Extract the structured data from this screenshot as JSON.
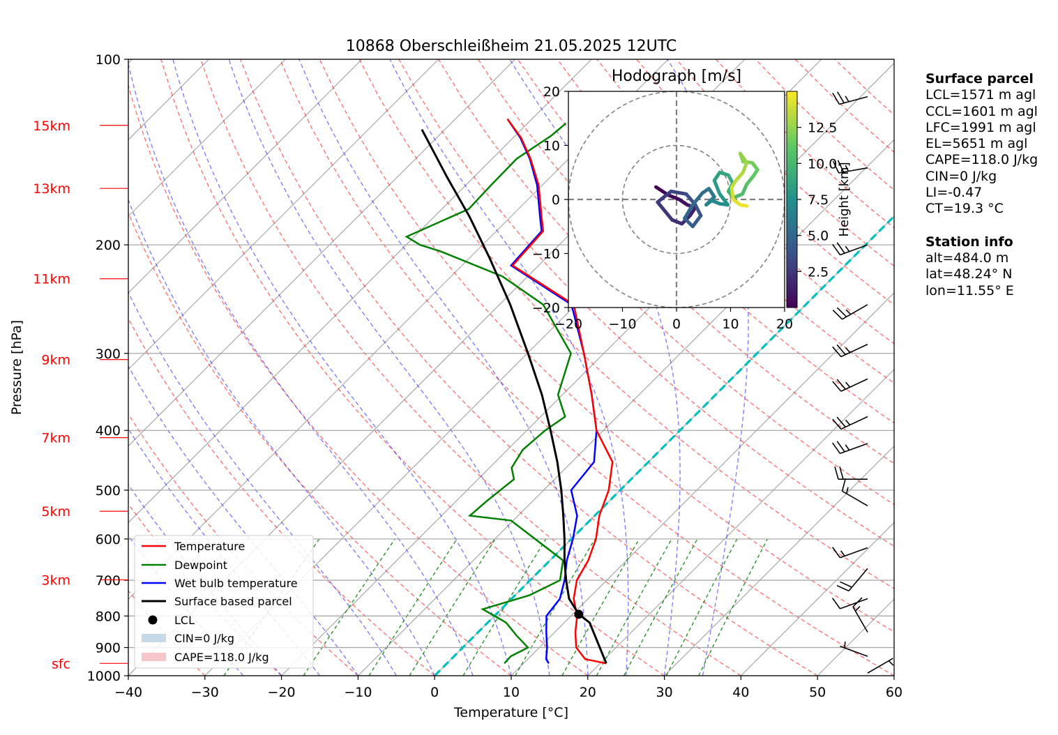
{
  "chart_data": {
    "type": "skewt",
    "title": "10868 Oberschleißheim 21.05.2025 12UTC",
    "xlabel": "Temperature [°C]",
    "ylabel": "Pressure [hPa]",
    "xlim": [
      -40,
      60
    ],
    "ylim": [
      1000,
      100
    ],
    "x_ticks": [
      -40,
      -30,
      -20,
      -10,
      0,
      10,
      20,
      30,
      40,
      50,
      60
    ],
    "y_ticks": [
      100,
      200,
      300,
      400,
      500,
      600,
      700,
      800,
      900,
      1000
    ],
    "height_labels": [
      {
        "label": "15km",
        "p": 128
      },
      {
        "label": "13km",
        "p": 162
      },
      {
        "label": "11km",
        "p": 227
      },
      {
        "label": "9km",
        "p": 307
      },
      {
        "label": "7km",
        "p": 411
      },
      {
        "label": "5km",
        "p": 541
      },
      {
        "label": "3km",
        "p": 699
      },
      {
        "label": "sfc",
        "p": 955
      }
    ],
    "series": [
      {
        "name": "Temperature",
        "color": "#ff0000",
        "points": [
          [
            20.8,
            955
          ],
          [
            17.5,
            940
          ],
          [
            14.8,
            900
          ],
          [
            12.7,
            850
          ],
          [
            10.8,
            800
          ],
          [
            8.1,
            750
          ],
          [
            6.1,
            700
          ],
          [
            5.0,
            650
          ],
          [
            3.2,
            600
          ],
          [
            0.6,
            550
          ],
          [
            -1.5,
            500
          ],
          [
            -4.7,
            450
          ],
          [
            -10.9,
            400
          ],
          [
            -16.2,
            350
          ],
          [
            -22.6,
            300
          ],
          [
            -30.3,
            250
          ],
          [
            -43.4,
            216
          ],
          [
            -43.9,
            190
          ],
          [
            -46.0,
            180
          ],
          [
            -50.5,
            160
          ],
          [
            -55.0,
            145
          ],
          [
            -59.0,
            134
          ],
          [
            -63.2,
            125
          ]
        ]
      },
      {
        "name": "Dewpoint",
        "color": "#008000",
        "points": [
          [
            7.5,
            955
          ],
          [
            7.4,
            930
          ],
          [
            8.5,
            900
          ],
          [
            5.4,
            860
          ],
          [
            2.4,
            820
          ],
          [
            -2.4,
            780
          ],
          [
            1.9,
            740
          ],
          [
            3.9,
            700
          ],
          [
            1.7,
            650
          ],
          [
            -10.3,
            560
          ],
          [
            -16.3,
            550
          ],
          [
            -16.0,
            520
          ],
          [
            -15.3,
            480
          ],
          [
            -17.1,
            460
          ],
          [
            -18.0,
            430
          ],
          [
            -17.6,
            400
          ],
          [
            -16.8,
            380
          ],
          [
            -20.6,
            350
          ],
          [
            -24.3,
            300
          ],
          [
            -34.3,
            250
          ],
          [
            -43.3,
            225
          ],
          [
            -54.6,
            205
          ],
          [
            -58.2,
            200
          ],
          [
            -61.0,
            194
          ],
          [
            -56.5,
            175
          ],
          [
            -56.7,
            160
          ],
          [
            -56.8,
            145
          ],
          [
            -55.3,
            133
          ],
          [
            -55.0,
            127
          ]
        ]
      },
      {
        "name": "Wet bulb temperature",
        "color": "#0000ff",
        "points": [
          [
            13.3,
            955
          ],
          [
            12.4,
            940
          ],
          [
            11.0,
            900
          ],
          [
            8.9,
            850
          ],
          [
            6.8,
            800
          ],
          [
            6.3,
            750
          ],
          [
            4.5,
            700
          ],
          [
            2.2,
            650
          ],
          [
            0.2,
            600
          ],
          [
            -2.3,
            550
          ],
          [
            -6.4,
            500
          ],
          [
            -7.1,
            450
          ],
          [
            -10.9,
            400
          ],
          [
            -16.2,
            350
          ],
          [
            -22.6,
            300
          ],
          [
            -30.6,
            250
          ],
          [
            -43.6,
            216
          ],
          [
            -44.1,
            190
          ],
          [
            -46.2,
            180
          ],
          [
            -50.7,
            160
          ],
          [
            -55.1,
            145
          ],
          [
            -59.1,
            134
          ],
          [
            -63.2,
            125
          ]
        ]
      },
      {
        "name": "Surface based parcel",
        "color": "#000000",
        "points": [
          [
            20.8,
            955
          ],
          [
            13.3,
            820
          ],
          [
            10.8,
            795
          ],
          [
            7.5,
            750
          ],
          [
            4.7,
            700
          ],
          [
            1.9,
            650
          ],
          [
            -0.9,
            600
          ],
          [
            -4.1,
            550
          ],
          [
            -7.7,
            500
          ],
          [
            -11.9,
            450
          ],
          [
            -16.9,
            400
          ],
          [
            -22.7,
            350
          ],
          [
            -29.9,
            300
          ],
          [
            -38.6,
            250
          ],
          [
            -47.4,
            210
          ],
          [
            -55.4,
            180
          ],
          [
            -63.6,
            155
          ],
          [
            -73.0,
            130
          ]
        ]
      }
    ],
    "lcl": {
      "t": 10.8,
      "p": 795,
      "label": "LCL"
    },
    "freezing_level_line": {
      "color": "#00bfbf",
      "start": [
        0,
        1000
      ],
      "end": [
        0,
        150
      ]
    },
    "legend": {
      "position": "lower-left",
      "entries": [
        "Temperature",
        "Dewpoint",
        "Wet bulb temperature",
        "Surface based parcel",
        "LCL",
        "CIN=0 J/kg",
        "CAPE=118.0 J/kg"
      ]
    },
    "shading": {
      "cape": "CAPE=118.0 J/kg",
      "cin": "CIN=0 J/kg",
      "cape_color": "#f4b8bd",
      "cin_color": "#b7cfe4"
    },
    "wind_barbs": [
      {
        "p": 990,
        "speed_kt": 5,
        "dir": 60
      },
      {
        "p": 930,
        "speed_kt": 5,
        "dir": 290
      },
      {
        "p": 850,
        "speed_kt": 15,
        "dir": 330
      },
      {
        "p": 750,
        "speed_kt": 10,
        "dir": 250
      },
      {
        "p": 670,
        "speed_kt": 20,
        "dir": 220
      },
      {
        "p": 620,
        "speed_kt": 15,
        "dir": 250
      },
      {
        "p": 530,
        "speed_kt": 15,
        "dir": 300
      },
      {
        "p": 480,
        "speed_kt": 20,
        "dir": 270
      },
      {
        "p": 420,
        "speed_kt": 25,
        "dir": 250
      },
      {
        "p": 380,
        "speed_kt": 25,
        "dir": 245
      },
      {
        "p": 330,
        "speed_kt": 25,
        "dir": 245
      },
      {
        "p": 290,
        "speed_kt": 25,
        "dir": 245
      },
      {
        "p": 250,
        "speed_kt": 25,
        "dir": 240
      },
      {
        "p": 200,
        "speed_kt": 25,
        "dir": 250
      },
      {
        "p": 150,
        "speed_kt": 25,
        "dir": 260
      },
      {
        "p": 115,
        "speed_kt": 25,
        "dir": 255
      }
    ],
    "hodograph": {
      "title": "Hodograph [m/s]",
      "xlim": [
        -20,
        20
      ],
      "ylim": [
        -20,
        20
      ],
      "ticks": [
        -20,
        -10,
        0,
        10,
        20
      ],
      "rings": [
        10,
        20
      ],
      "colorbar_label": "Height [km]",
      "colorbar_ticks": [
        "2.5",
        "5.0",
        "7.5",
        "10.0",
        "12.5"
      ],
      "colorbar_range_km": [
        0,
        15
      ],
      "trace": [
        [
          -3.8,
          2.3
        ],
        [
          -1.5,
          0.8
        ],
        [
          0.5,
          0.0
        ],
        [
          2.0,
          -1.0
        ],
        [
          3.5,
          -1.5
        ],
        [
          2.5,
          -3.0
        ],
        [
          1.0,
          -4.5
        ],
        [
          -0.8,
          -3.8
        ],
        [
          -3.5,
          -0.5
        ],
        [
          -1.0,
          1.5
        ],
        [
          1.8,
          1.0
        ],
        [
          3.5,
          -1.0
        ],
        [
          4.5,
          -3.0
        ],
        [
          3.0,
          -5.0
        ],
        [
          1.5,
          -3.5
        ],
        [
          3.0,
          -1.0
        ],
        [
          4.8,
          1.2
        ],
        [
          6.0,
          2.0
        ],
        [
          7.0,
          0.5
        ],
        [
          5.5,
          -1.0
        ],
        [
          6.5,
          -0.2
        ],
        [
          8.0,
          -0.8
        ],
        [
          9.5,
          -1.0
        ],
        [
          8.0,
          1.0
        ],
        [
          7.0,
          3.5
        ],
        [
          8.0,
          5.0
        ],
        [
          9.6,
          4.5
        ],
        [
          10.4,
          3.0
        ],
        [
          9.6,
          1.5
        ],
        [
          10.5,
          0.3
        ],
        [
          12.2,
          1.0
        ],
        [
          13.0,
          2.8
        ],
        [
          14.2,
          4.3
        ],
        [
          15.0,
          5.5
        ],
        [
          14.0,
          6.8
        ],
        [
          12.3,
          7.0
        ],
        [
          11.8,
          8.5
        ],
        [
          13.0,
          6.8
        ],
        [
          12.3,
          5.0
        ],
        [
          11.0,
          3.5
        ],
        [
          10.2,
          2.2
        ],
        [
          10.5,
          0.0
        ],
        [
          11.8,
          -1.0
        ],
        [
          13.0,
          -1.2
        ]
      ]
    }
  },
  "surface_parcel": {
    "header": "Surface parcel",
    "lcl": "LCL=1571 m agl",
    "ccl": "CCL=1601 m agl",
    "lfc": "LFC=1991 m agl",
    "el": "EL=5651 m agl",
    "cape": "CAPE=118.0 J/kg",
    "cin": "CIN=0 J/kg",
    "li": "LI=-0.47",
    "ct": "CT=19.3 °C"
  },
  "station_info": {
    "header": "Station info",
    "alt": "alt=484.0 m",
    "lat": "lat=48.24° N",
    "lon": "lon=11.55° E"
  }
}
